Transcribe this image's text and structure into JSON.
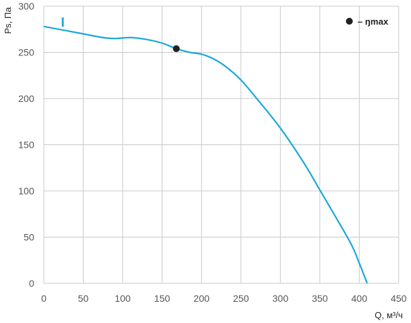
{
  "chart_data": {
    "type": "line",
    "xlabel": "Q, м³/ч",
    "ylabel": "Ps, Па",
    "xlim": [
      0,
      450
    ],
    "ylim": [
      0,
      300
    ],
    "x_ticks": [
      0,
      50,
      100,
      150,
      200,
      250,
      300,
      350,
      400,
      450
    ],
    "y_ticks": [
      0,
      50,
      100,
      150,
      200,
      250,
      300
    ],
    "x_tick_labels": [
      "0",
      "50",
      "100",
      "150",
      "200",
      "250",
      "300",
      "350",
      "400",
      "450"
    ],
    "y_tick_labels": [
      "0",
      "50",
      "100",
      "150",
      "200",
      "250",
      "300"
    ],
    "grid": true,
    "series": [
      {
        "name": "I",
        "color": "#1aa7dc",
        "x": [
          0,
          25,
          50,
          75,
          90,
          110,
          130,
          150,
          168,
          185,
          200,
          215,
          230,
          250,
          270,
          300,
          330,
          350,
          370,
          390,
          400,
          410
        ],
        "y": [
          278,
          274,
          270,
          266,
          265,
          266,
          264,
          260,
          254,
          250,
          248,
          243,
          235,
          220,
          200,
          168,
          130,
          101,
          72,
          42,
          22,
          0
        ]
      }
    ],
    "markers": [
      {
        "x": 168,
        "y": 254,
        "color": "#222222"
      }
    ],
    "legend": {
      "position": "top-right",
      "marker_color": "#222222",
      "text": "– ŋmax"
    }
  }
}
